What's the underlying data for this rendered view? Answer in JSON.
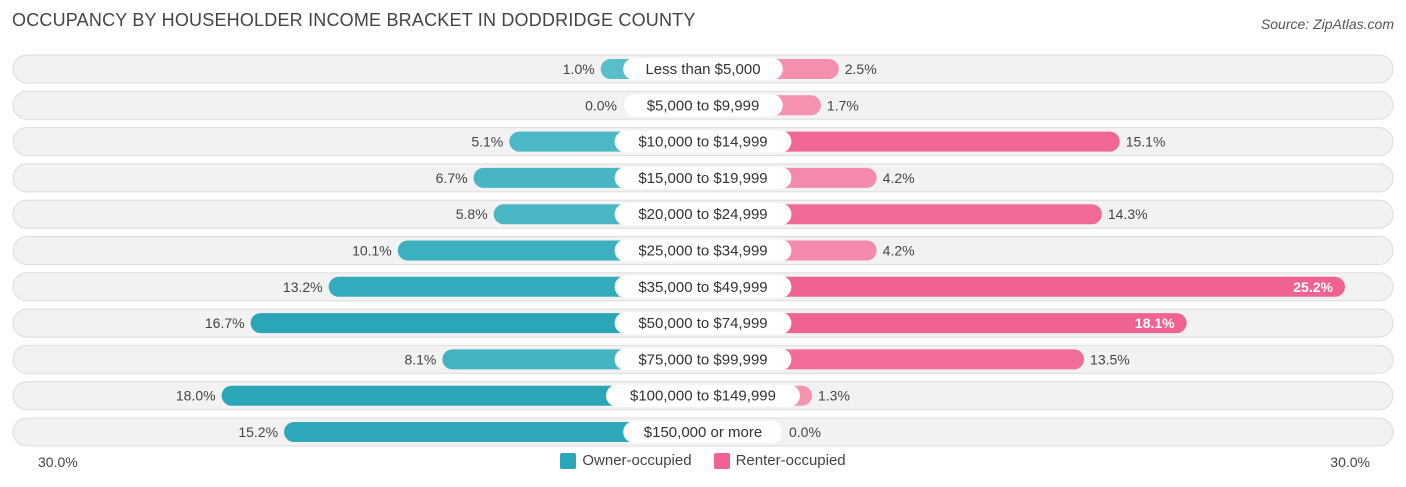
{
  "title": "OCCUPANCY BY HOUSEHOLDER INCOME BRACKET IN DODDRIDGE COUNTY",
  "source": "Source: ZipAtlas.com",
  "colors": {
    "owner": "#5BBFCB",
    "owner_dark": "#2AA6B8",
    "renter": "#F598B3",
    "renter_dark": "#F06292",
    "row_bg": "#F2F2F2",
    "row_border": "#DDDDDD"
  },
  "chart_data": {
    "type": "bar",
    "orientation": "horizontal-diverging",
    "categories": [
      "Less than $5,000",
      "$5,000 to $9,999",
      "$10,000 to $14,999",
      "$15,000 to $19,999",
      "$20,000 to $24,999",
      "$25,000 to $34,999",
      "$35,000 to $49,999",
      "$50,000 to $74,999",
      "$75,000 to $99,999",
      "$100,000 to $149,999",
      "$150,000 or more"
    ],
    "series": [
      {
        "name": "Owner-occupied",
        "values": [
          1.0,
          0.0,
          5.1,
          6.7,
          5.8,
          10.1,
          13.2,
          16.7,
          8.1,
          18.0,
          15.2
        ],
        "labels": [
          "1.0%",
          "0.0%",
          "5.1%",
          "6.7%",
          "5.8%",
          "10.1%",
          "13.2%",
          "16.7%",
          "8.1%",
          "18.0%",
          "15.2%"
        ]
      },
      {
        "name": "Renter-occupied",
        "values": [
          2.5,
          1.7,
          15.1,
          4.2,
          14.3,
          4.2,
          25.2,
          18.1,
          13.5,
          1.3,
          0.0
        ],
        "labels": [
          "2.5%",
          "1.7%",
          "15.1%",
          "4.2%",
          "14.3%",
          "4.2%",
          "25.2%",
          "18.1%",
          "13.5%",
          "1.3%",
          "0.0%"
        ]
      }
    ],
    "axis": {
      "max": 30.0,
      "left_label": "30.0%",
      "right_label": "30.0%"
    },
    "legend": [
      "Owner-occupied",
      "Renter-occupied"
    ]
  }
}
